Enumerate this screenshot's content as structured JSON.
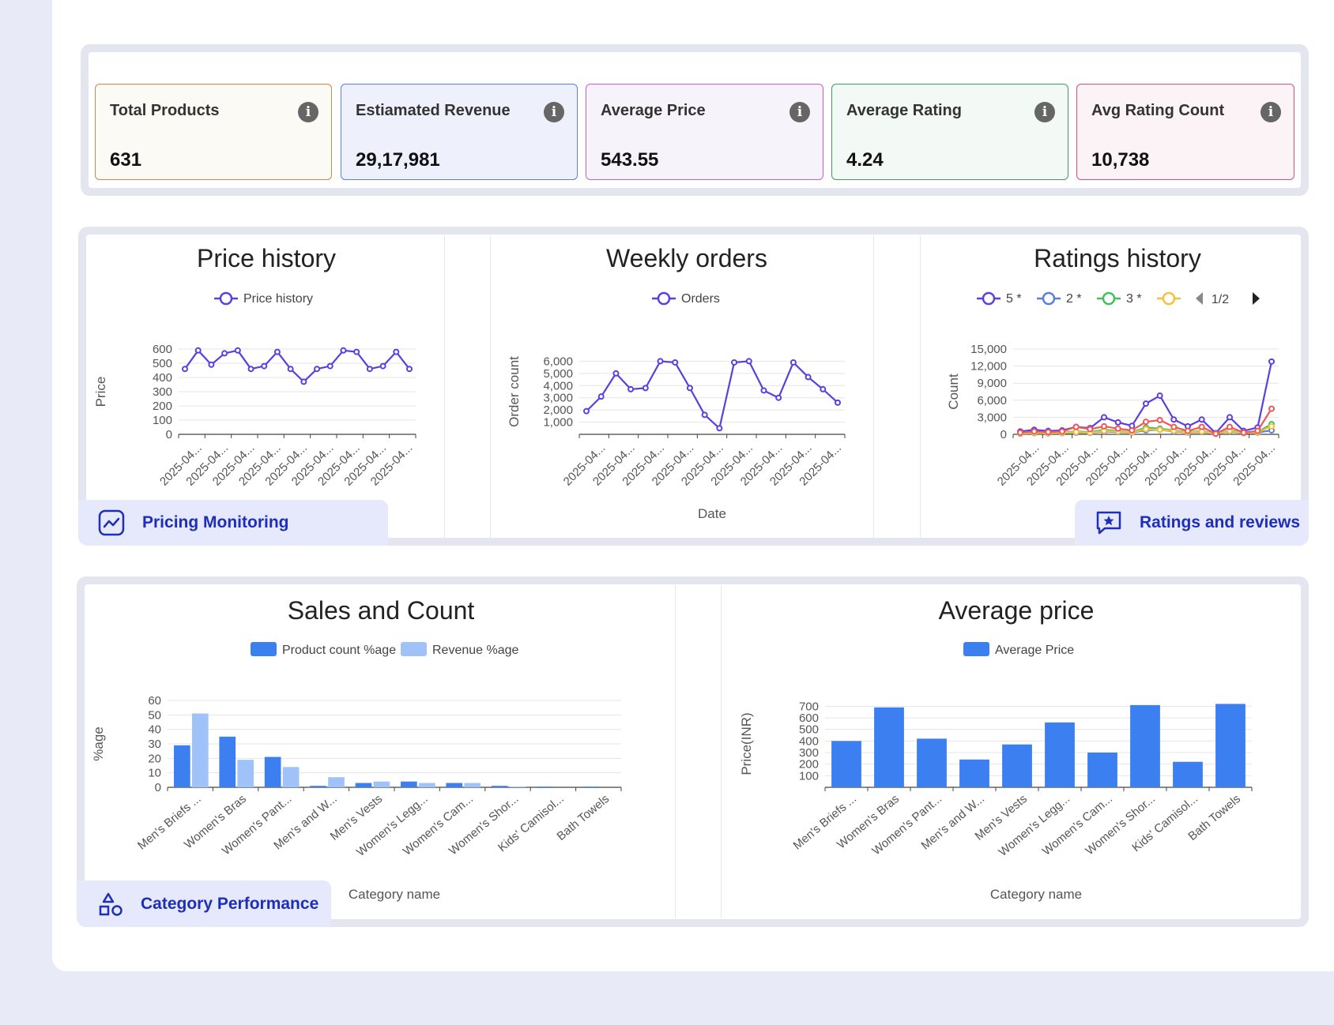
{
  "kpis": [
    {
      "label": "Total Products",
      "value": "631",
      "color": "#c8894a",
      "bg": "#fcfaf5"
    },
    {
      "label": "Estiamated Revenue",
      "value": "29,17,981",
      "color": "#5a7fe0",
      "bg": "#eef1fc"
    },
    {
      "label": "Average Price",
      "value": "543.55",
      "color": "#c45fd8",
      "bg": "#f7f3fb"
    },
    {
      "label": "Average Rating",
      "value": "4.24",
      "color": "#3f9b62",
      "bg": "#f3f9f4"
    },
    {
      "label": "Avg Rating Count",
      "value": "10,738",
      "color": "#d44f7b",
      "bg": "#fcf3f6"
    }
  ],
  "tags": {
    "pricing": "Pricing Monitoring",
    "ratings": "Ratings and reviews",
    "category": "Category Performance"
  },
  "chart_data": [
    {
      "type": "line",
      "title": "Price history",
      "ylabel": "Price",
      "xlabel": "",
      "legend": [
        "Price history"
      ],
      "color": "#5b3fe0",
      "ylim": [
        0,
        600
      ],
      "yticks": [
        "0",
        "100",
        "200",
        "300",
        "400",
        "500",
        "600"
      ],
      "x_tick_label": "2025-04...",
      "series": [
        {
          "name": "Price history",
          "values": [
            460,
            590,
            490,
            570,
            590,
            460,
            480,
            580,
            460,
            370,
            460,
            480,
            590,
            580,
            460,
            480,
            580,
            460
          ]
        }
      ]
    },
    {
      "type": "line",
      "title": "Weekly orders",
      "ylabel": "Order count",
      "xlabel": "Date",
      "legend": [
        "Orders"
      ],
      "color": "#5b3fe0",
      "ylim": [
        0,
        7000
      ],
      "yticks": [
        "1,000",
        "2,000",
        "3,000",
        "4,000",
        "5,000",
        "6,000"
      ],
      "x_tick_label": "2025-04...",
      "series": [
        {
          "name": "Orders",
          "values": [
            1900,
            3100,
            5000,
            3700,
            3800,
            6000,
            5900,
            3800,
            1600,
            500,
            5900,
            6000,
            3600,
            3000,
            5900,
            4700,
            3700,
            2600
          ]
        }
      ]
    },
    {
      "type": "line",
      "title": "Ratings history",
      "ylabel": "Count",
      "xlabel": "",
      "legend": [
        "5 *",
        "2 *",
        "3 *"
      ],
      "legend_page": "1/2",
      "ylim": [
        0,
        15000
      ],
      "yticks": [
        "0",
        "3,000",
        "6,000",
        "9,000",
        "12,000",
        "15,000"
      ],
      "x_tick_label": "2025-04...",
      "series": [
        {
          "name": "5 *",
          "color": "#5b3fe0",
          "values": [
            500,
            800,
            600,
            700,
            1300,
            1100,
            3000,
            2100,
            1500,
            5400,
            6800,
            2600,
            1400,
            2600,
            200,
            3000,
            600,
            1200,
            12800
          ]
        },
        {
          "name": "2 *",
          "color": "#5a7fe0",
          "values": [
            100,
            200,
            150,
            200,
            300,
            250,
            500,
            400,
            300,
            700,
            800,
            500,
            300,
            400,
            100,
            500,
            200,
            300,
            700
          ]
        },
        {
          "name": "3 *",
          "color": "#44c05a",
          "values": [
            200,
            300,
            250,
            300,
            500,
            400,
            800,
            600,
            400,
            1200,
            1000,
            700,
            400,
            600,
            100,
            700,
            300,
            400,
            1800
          ]
        },
        {
          "name": "",
          "color": "#f5c136",
          "values": [
            150,
            250,
            200,
            250,
            400,
            300,
            600,
            500,
            350,
            900,
            800,
            600,
            350,
            500,
            100,
            600,
            250,
            350,
            1400
          ]
        },
        {
          "name": "",
          "color": "#f0575a",
          "values": [
            300,
            500,
            400,
            500,
            1300,
            900,
            1400,
            1000,
            700,
            2200,
            2500,
            1300,
            600,
            1300,
            100,
            1300,
            300,
            600,
            4500
          ]
        }
      ]
    },
    {
      "type": "bar",
      "title": "Sales and Count",
      "ylabel": "%age",
      "xlabel": "Category name",
      "ylim": [
        0,
        60
      ],
      "yticks": [
        "0",
        "10",
        "20",
        "30",
        "40",
        "50",
        "60"
      ],
      "categories": [
        "Men's Briefs ...",
        "Women's Bras",
        "Women's Pant...",
        "Men's and W...",
        "Men's Vests",
        "Women's Legg...",
        "Women's Cam...",
        "Women's Shor...",
        "Kids' Camisol...",
        "Bath Towels"
      ],
      "series": [
        {
          "name": "Product count %age",
          "color": "#3c7ff0",
          "values": [
            29,
            35,
            21,
            1,
            3,
            4,
            3,
            1,
            0.5,
            0.5
          ]
        },
        {
          "name": "Revenue %age",
          "color": "#9fc3f8",
          "values": [
            51,
            19,
            14,
            7,
            4,
            3,
            3,
            0.5,
            0,
            0
          ]
        }
      ]
    },
    {
      "type": "bar",
      "title": "Average price",
      "ylabel": "Price(INR)",
      "xlabel": "Category name",
      "ylim": [
        0,
        750
      ],
      "yticks": [
        "100",
        "200",
        "300",
        "400",
        "500",
        "600",
        "700"
      ],
      "categories": [
        "Men's Briefs ...",
        "Women's Bras",
        "Women's Pant...",
        "Men's and W...",
        "Men's Vests",
        "Women's Legg...",
        "Women's Cam...",
        "Women's Shor...",
        "Kids' Camisol...",
        "Bath Towels"
      ],
      "series": [
        {
          "name": "Average Price",
          "color": "#3c7ff0",
          "values": [
            400,
            690,
            420,
            240,
            370,
            560,
            300,
            710,
            220,
            720
          ]
        }
      ]
    }
  ]
}
